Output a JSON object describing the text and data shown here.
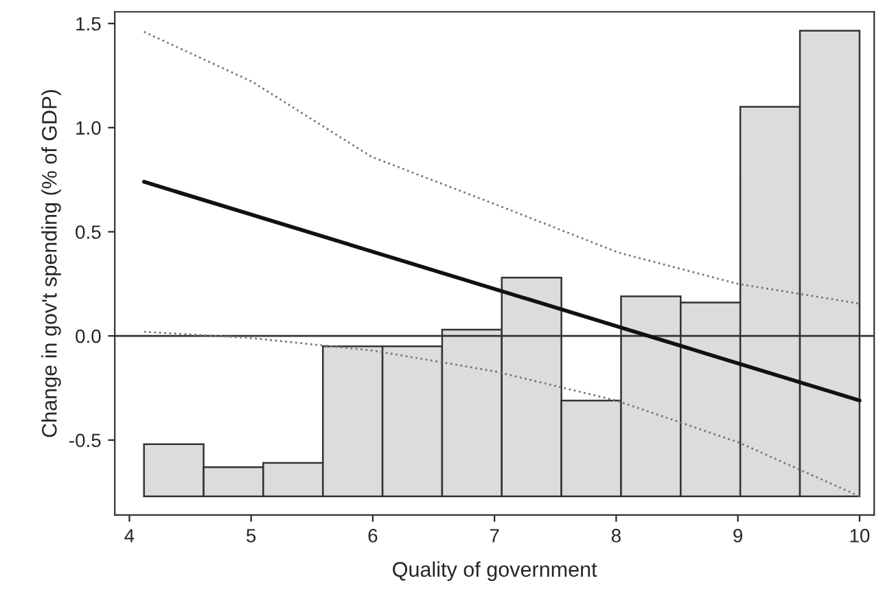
{
  "chart_data": {
    "type": "line",
    "xlabel": "Quality of government",
    "ylabel": "Change in gov't spending (% of GDP)",
    "xlim": [
      3.88,
      10.12
    ],
    "ylim": [
      -0.86,
      1.556
    ],
    "xticks": [
      4,
      5,
      6,
      7,
      8,
      9,
      10
    ],
    "yticks": [
      {
        "value": -0.5,
        "label": "-0.5"
      },
      {
        "value": 0,
        "label": "0.0"
      },
      {
        "value": 0.5,
        "label": "0.5"
      },
      {
        "value": 1,
        "label": "1.0"
      },
      {
        "value": 1.5,
        "label": "1.5"
      }
    ],
    "grid": false,
    "legend": false,
    "ref_lines": [
      {
        "axis": "y",
        "value": 0,
        "color": "#333333",
        "line_style": "solid"
      }
    ],
    "series": [
      {
        "type": "histogram",
        "color": "#dcdcdc",
        "bins": [
          4.12,
          4.61,
          5.1,
          5.59,
          6.08,
          6.57,
          7.06,
          7.55,
          8.04,
          8.53,
          9.02,
          9.51,
          10.0
        ],
        "base": [
          -0.77,
          -0.77,
          -0.77,
          -0.77,
          -0.77,
          -0.77,
          -0.77,
          -0.77,
          -0.77,
          -0.77,
          -0.77,
          -0.77
        ],
        "values": [
          0.25,
          0.14,
          0.16,
          0.72,
          0.72,
          0.8,
          1.05,
          0.46,
          0.96,
          0.93,
          1.87,
          2.235
        ]
      },
      {
        "color": "#111111",
        "line_style": "solid",
        "x": [
          4.12,
          10.0
        ],
        "values": [
          0.74,
          -0.31
        ]
      },
      {
        "color": "#777777",
        "line_style": "dotted",
        "x": [
          4.12,
          5.01,
          5.99,
          7.06,
          8.02,
          9.0,
          10.0
        ],
        "values": [
          1.46,
          1.22,
          0.86,
          0.62,
          0.4,
          0.25,
          0.155
        ]
      },
      {
        "color": "#777777",
        "line_style": "dotted",
        "x": [
          4.12,
          5.0,
          6.0,
          7.0,
          8.0,
          9.0,
          10.0
        ],
        "values": [
          0.02,
          -0.01,
          -0.07,
          -0.17,
          -0.31,
          -0.51,
          -0.77
        ]
      }
    ]
  }
}
